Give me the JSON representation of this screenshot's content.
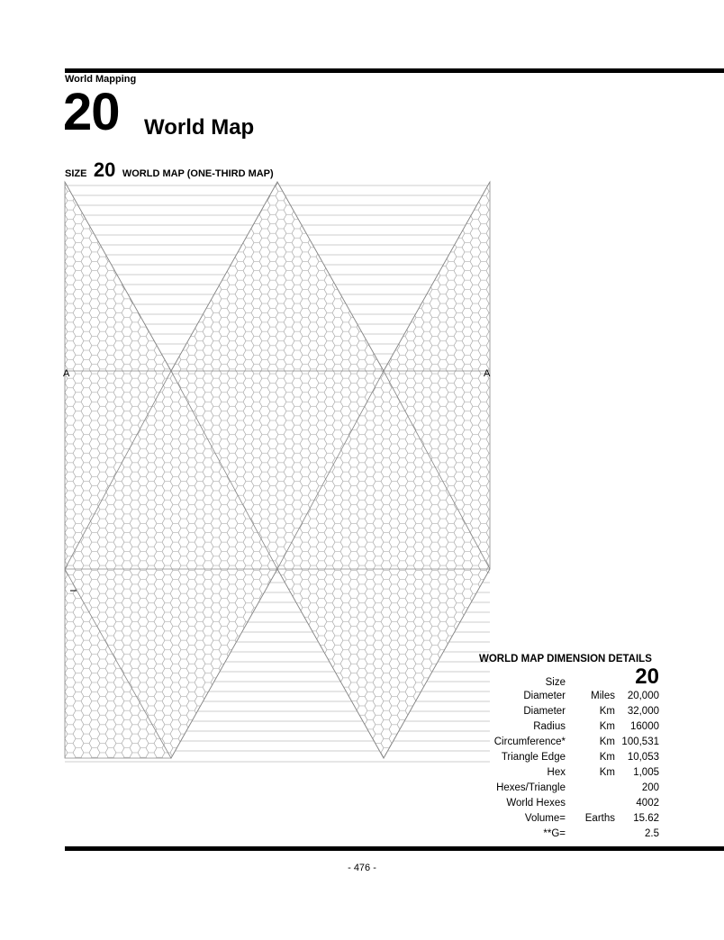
{
  "header": {
    "section": "World Mapping",
    "chapter_number": "20",
    "chapter_title": "World Map"
  },
  "map": {
    "heading_prefix": "SIZE",
    "heading_size": "20",
    "heading_text": "WORLD MAP (ONE-THIRD MAP)",
    "left_mark": "A",
    "right_mark": "A"
  },
  "details": {
    "title": "WORLD MAP DIMENSION DETAILS",
    "size_label": "Size",
    "size_value": "20",
    "rows": [
      {
        "label": "Diameter",
        "unit": "Miles",
        "value": "20,000"
      },
      {
        "label": "Diameter",
        "unit": "Km",
        "value": "32,000"
      },
      {
        "label": "Radius",
        "unit": "Km",
        "value": "16000"
      },
      {
        "label": "Circumference*",
        "unit": "Km",
        "value": "100,531"
      },
      {
        "label": "Triangle Edge",
        "unit": "Km",
        "value": "10,053"
      },
      {
        "label": "Hex",
        "unit": "Km",
        "value": "1,005"
      },
      {
        "label": "Hexes/Triangle",
        "unit": "",
        "value": "200"
      },
      {
        "label": "World Hexes",
        "unit": "",
        "value": "4002"
      },
      {
        "label": "Volume=",
        "unit": "Earths",
        "value": "15.62"
      },
      {
        "label": "**G=",
        "unit": "",
        "value": "2.5"
      }
    ]
  },
  "footer": {
    "page_number": "- 476 -"
  }
}
